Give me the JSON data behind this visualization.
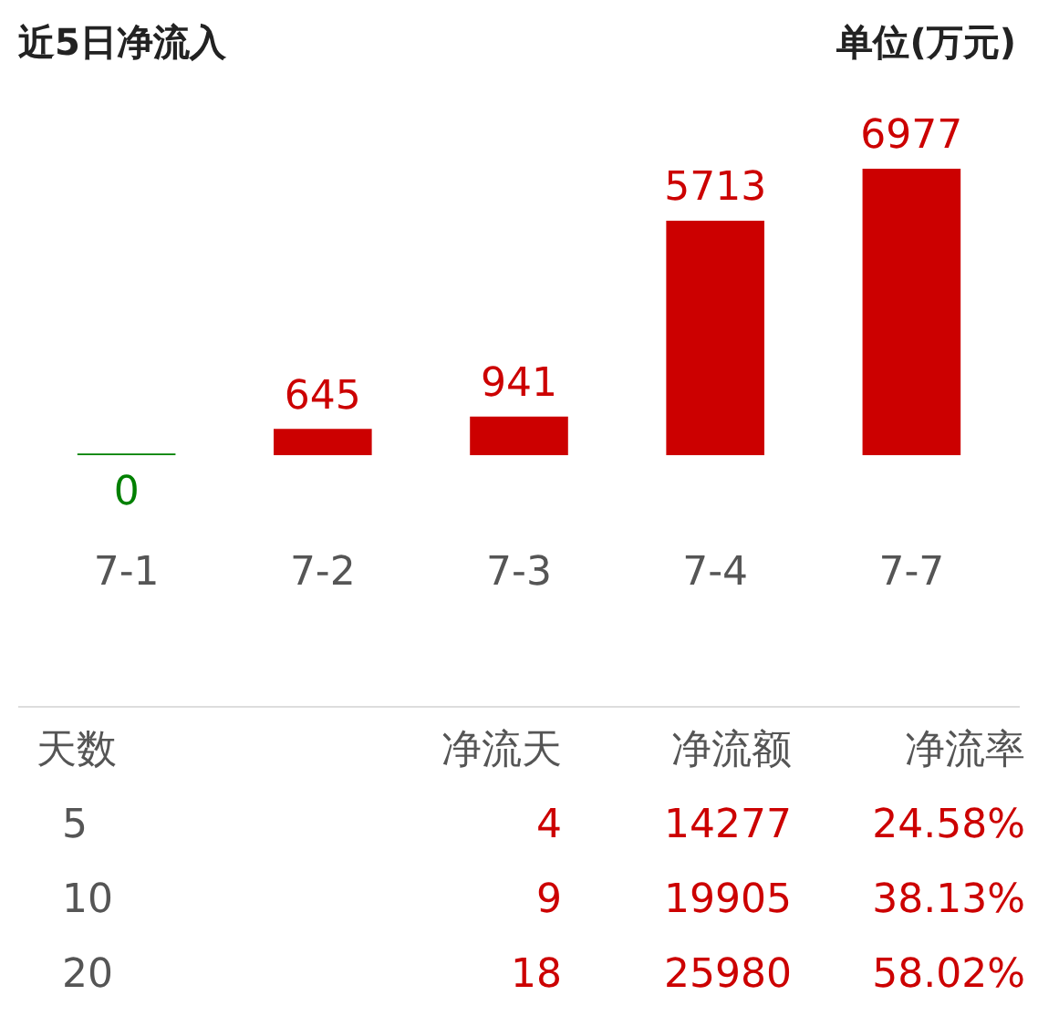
{
  "chart_data": {
    "type": "bar",
    "title": "近5日净流入",
    "subtitle": "单位(万元)",
    "categories": [
      "7-1",
      "7-2",
      "7-3",
      "7-4",
      "7-7"
    ],
    "values": [
      0,
      645,
      941,
      5713,
      6977
    ],
    "colors": [
      "#008000",
      "#cc0000",
      "#cc0000",
      "#cc0000",
      "#cc0000"
    ],
    "tick_labels": "x",
    "data_labels": true,
    "grid": false,
    "legend": false,
    "annotations": [
      "天数",
      "净流天",
      "净流额",
      "净流率",
      "5",
      "4",
      "14277",
      "24.58%",
      "10",
      "9",
      "19905",
      "38.13%",
      "20",
      "18",
      "25980",
      "58.02%"
    ]
  }
}
